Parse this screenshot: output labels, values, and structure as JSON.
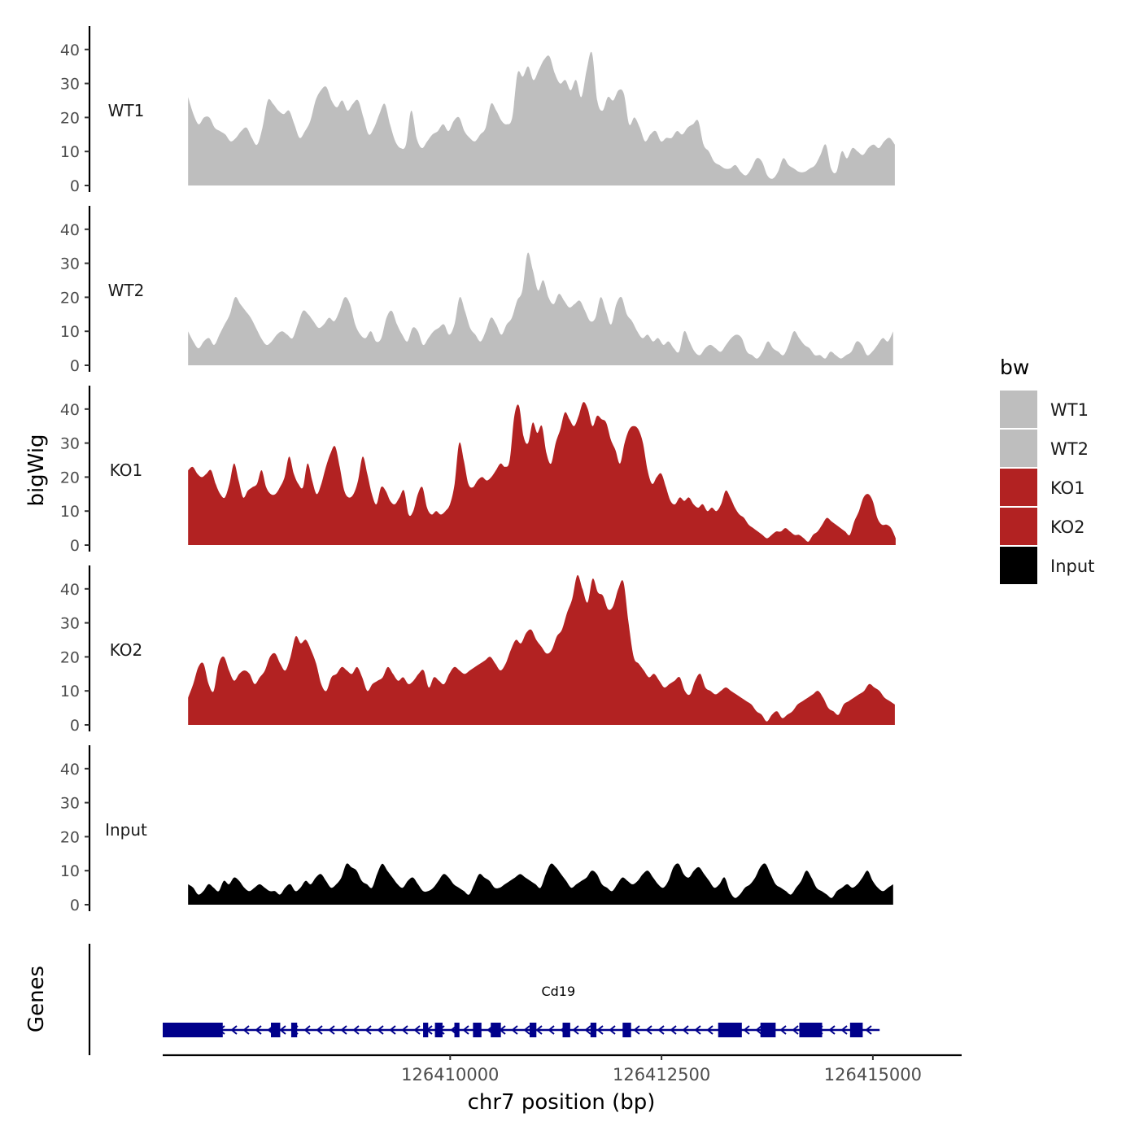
{
  "chart_data": {
    "type": "area",
    "title": "",
    "xlabel": "chr7 position (bp)",
    "ylabel": "bigWig",
    "genes_label": "Genes",
    "xlim": [
      126406600,
      126416050
    ],
    "x_ticks": [
      126410000,
      126412500,
      126415000
    ],
    "x_tick_labels": [
      "126410000",
      "126412500",
      "126415000"
    ],
    "ylim": [
      0,
      45
    ],
    "y_ticks": [
      0,
      10,
      20,
      30,
      40
    ],
    "y_tick_labels": [
      "0",
      "10",
      "20",
      "30",
      "40"
    ],
    "legend": {
      "title": "bw",
      "position": "right",
      "entries": [
        {
          "label": "WT1",
          "color": "#bebebe"
        },
        {
          "label": "WT2",
          "color": "#bebebe"
        },
        {
          "label": "KO1",
          "color": "#b22222"
        },
        {
          "label": "KO2",
          "color": "#b22222"
        },
        {
          "label": "Input",
          "color": "#000000"
        }
      ]
    },
    "series": [
      {
        "name": "WT1",
        "color": "#bebebe",
        "x_start": 126406900,
        "x_end": 126415260,
        "values": [
          26,
          21,
          18,
          20,
          20,
          17,
          16,
          15,
          13,
          14,
          16,
          17,
          14,
          12,
          17,
          25,
          24,
          22,
          21,
          22,
          18,
          14,
          16,
          19,
          25,
          28,
          29,
          25,
          23,
          25,
          22,
          24,
          25,
          20,
          15,
          17,
          21,
          24,
          18,
          13,
          11,
          12,
          22,
          14,
          11,
          13,
          15,
          16,
          18,
          16,
          19,
          20,
          16,
          14,
          13,
          15,
          17,
          24,
          22,
          19,
          18,
          20,
          33,
          32,
          35,
          31,
          34,
          37,
          38,
          33,
          30,
          31,
          28,
          31,
          26,
          34,
          39,
          25,
          22,
          26,
          25,
          28,
          27,
          18,
          20,
          17,
          13,
          15,
          16,
          13,
          14,
          14,
          16,
          15,
          17,
          18,
          19,
          12,
          10,
          7,
          6,
          5,
          5,
          6,
          4,
          3,
          5,
          8,
          7,
          3,
          2,
          4,
          8,
          6,
          5,
          4,
          4,
          5,
          6,
          9,
          12,
          5,
          4,
          10,
          8,
          11,
          10,
          9,
          11,
          12,
          11,
          13,
          14,
          12
        ],
        "label_level": 22
      },
      {
        "name": "WT2",
        "color": "#bebebe",
        "x_start": 126406900,
        "x_end": 126415240,
        "values": [
          10,
          7,
          5,
          7,
          8,
          6,
          9,
          12,
          15,
          20,
          18,
          16,
          14,
          11,
          8,
          6,
          7,
          9,
          10,
          9,
          8,
          12,
          16,
          15,
          13,
          11,
          12,
          14,
          13,
          16,
          20,
          18,
          12,
          9,
          8,
          10,
          7,
          8,
          14,
          16,
          12,
          9,
          7,
          11,
          10,
          6,
          8,
          10,
          11,
          12,
          9,
          12,
          20,
          16,
          11,
          9,
          7,
          10,
          14,
          12,
          9,
          12,
          14,
          19,
          22,
          33,
          28,
          22,
          25,
          20,
          18,
          21,
          19,
          17,
          18,
          19,
          16,
          13,
          14,
          20,
          16,
          12,
          18,
          20,
          15,
          13,
          10,
          8,
          9,
          7,
          8,
          6,
          7,
          5,
          4,
          10,
          7,
          4,
          3,
          5,
          6,
          5,
          4,
          6,
          8,
          9,
          8,
          4,
          3,
          2,
          4,
          7,
          5,
          4,
          3,
          6,
          10,
          8,
          6,
          5,
          3,
          3,
          2,
          4,
          3,
          2,
          3,
          4,
          7,
          6,
          3,
          4,
          6,
          8,
          7,
          10
        ]
      },
      {
        "name": "KO1",
        "color": "#b22222",
        "x_start": 126406900,
        "x_end": 126415270,
        "values": [
          22,
          23,
          21,
          20,
          21,
          22,
          18,
          15,
          14,
          18,
          24,
          19,
          14,
          16,
          17,
          18,
          22,
          17,
          15,
          15,
          17,
          20,
          26,
          21,
          18,
          17,
          24,
          19,
          15,
          18,
          23,
          27,
          29,
          23,
          16,
          14,
          15,
          19,
          26,
          21,
          15,
          12,
          17,
          16,
          13,
          12,
          14,
          16,
          9,
          10,
          15,
          17,
          11,
          9,
          10,
          9,
          10,
          12,
          18,
          30,
          25,
          18,
          17,
          19,
          20,
          19,
          20,
          22,
          24,
          23,
          25,
          38,
          41,
          32,
          30,
          36,
          33,
          35,
          27,
          24,
          30,
          34,
          39,
          37,
          35,
          38,
          42,
          40,
          35,
          38,
          37,
          36,
          31,
          28,
          24,
          30,
          34,
          35,
          34,
          30,
          22,
          18,
          20,
          21,
          17,
          13,
          12,
          14,
          13,
          14,
          12,
          11,
          12,
          10,
          11,
          10,
          12,
          16,
          14,
          11,
          9,
          8,
          6,
          5,
          4,
          3,
          2,
          3,
          4,
          4,
          5,
          4,
          3,
          3,
          2,
          1,
          3,
          4,
          6,
          8,
          7,
          6,
          5,
          4,
          3,
          7,
          10,
          14,
          15,
          13,
          8,
          6,
          6,
          5,
          2
        ]
      },
      {
        "name": "KO2",
        "color": "#b22222",
        "x_start": 126406900,
        "x_end": 126415260,
        "values": [
          8,
          12,
          17,
          18,
          12,
          10,
          18,
          20,
          16,
          13,
          15,
          16,
          15,
          12,
          14,
          16,
          20,
          21,
          18,
          16,
          20,
          26,
          24,
          25,
          22,
          18,
          12,
          10,
          14,
          15,
          17,
          16,
          15,
          17,
          14,
          10,
          12,
          13,
          14,
          17,
          15,
          13,
          14,
          12,
          13,
          15,
          16,
          11,
          14,
          13,
          12,
          15,
          17,
          16,
          15,
          16,
          17,
          18,
          19,
          20,
          18,
          16,
          18,
          22,
          25,
          24,
          27,
          28,
          25,
          23,
          21,
          22,
          26,
          28,
          33,
          37,
          44,
          40,
          36,
          43,
          39,
          38,
          34,
          35,
          40,
          42,
          30,
          20,
          18,
          16,
          14,
          15,
          13,
          11,
          12,
          13,
          14,
          10,
          9,
          13,
          15,
          11,
          10,
          9,
          10,
          11,
          10,
          9,
          8,
          7,
          6,
          4,
          3,
          1,
          3,
          4,
          2,
          3,
          4,
          6,
          7,
          8,
          9,
          10,
          8,
          5,
          4,
          3,
          6,
          7,
          8,
          9,
          10,
          12,
          11,
          10,
          8,
          7,
          6
        ]
      },
      {
        "name": "Input",
        "color": "#000000",
        "x_start": 126406900,
        "x_end": 126415240,
        "values": [
          6,
          5,
          3,
          4,
          6,
          5,
          4,
          7,
          6,
          8,
          7,
          5,
          4,
          5,
          6,
          5,
          4,
          4,
          3,
          5,
          6,
          4,
          5,
          7,
          6,
          8,
          9,
          7,
          5,
          6,
          8,
          12,
          11,
          10,
          7,
          6,
          5,
          9,
          12,
          10,
          8,
          6,
          5,
          7,
          8,
          6,
          4,
          4,
          5,
          7,
          9,
          8,
          6,
          5,
          4,
          3,
          6,
          9,
          8,
          7,
          5,
          5,
          6,
          7,
          8,
          9,
          8,
          7,
          6,
          5,
          9,
          12,
          11,
          9,
          7,
          5,
          6,
          7,
          8,
          10,
          9,
          6,
          5,
          4,
          6,
          8,
          7,
          6,
          7,
          9,
          10,
          8,
          6,
          5,
          7,
          11,
          12,
          9,
          8,
          10,
          11,
          9,
          7,
          5,
          6,
          8,
          4,
          2,
          3,
          5,
          6,
          8,
          11,
          12,
          9,
          6,
          5,
          4,
          3,
          5,
          7,
          10,
          8,
          5,
          4,
          3,
          2,
          4,
          5,
          6,
          5,
          6,
          8,
          10,
          7,
          5,
          4,
          5,
          6
        ]
      }
    ],
    "gene_track": {
      "label": "Cd19",
      "label_x": 126411280,
      "color": "#00008b",
      "line": [
        126406600,
        126415080
      ],
      "strand": "minus",
      "exons": [
        [
          126406600,
          126407310
        ],
        [
          126407880,
          126407990
        ],
        [
          126408120,
          126408190
        ],
        [
          126409680,
          126409740
        ],
        [
          126409820,
          126409910
        ],
        [
          126410050,
          126410110
        ],
        [
          126410270,
          126410370
        ],
        [
          126410480,
          126410600
        ],
        [
          126410940,
          126411020
        ],
        [
          126411330,
          126411420
        ],
        [
          126411660,
          126411730
        ],
        [
          126412040,
          126412140
        ],
        [
          126413170,
          126413450
        ],
        [
          126413670,
          126413850
        ],
        [
          126414130,
          126414400
        ],
        [
          126414730,
          126414880
        ]
      ]
    }
  }
}
